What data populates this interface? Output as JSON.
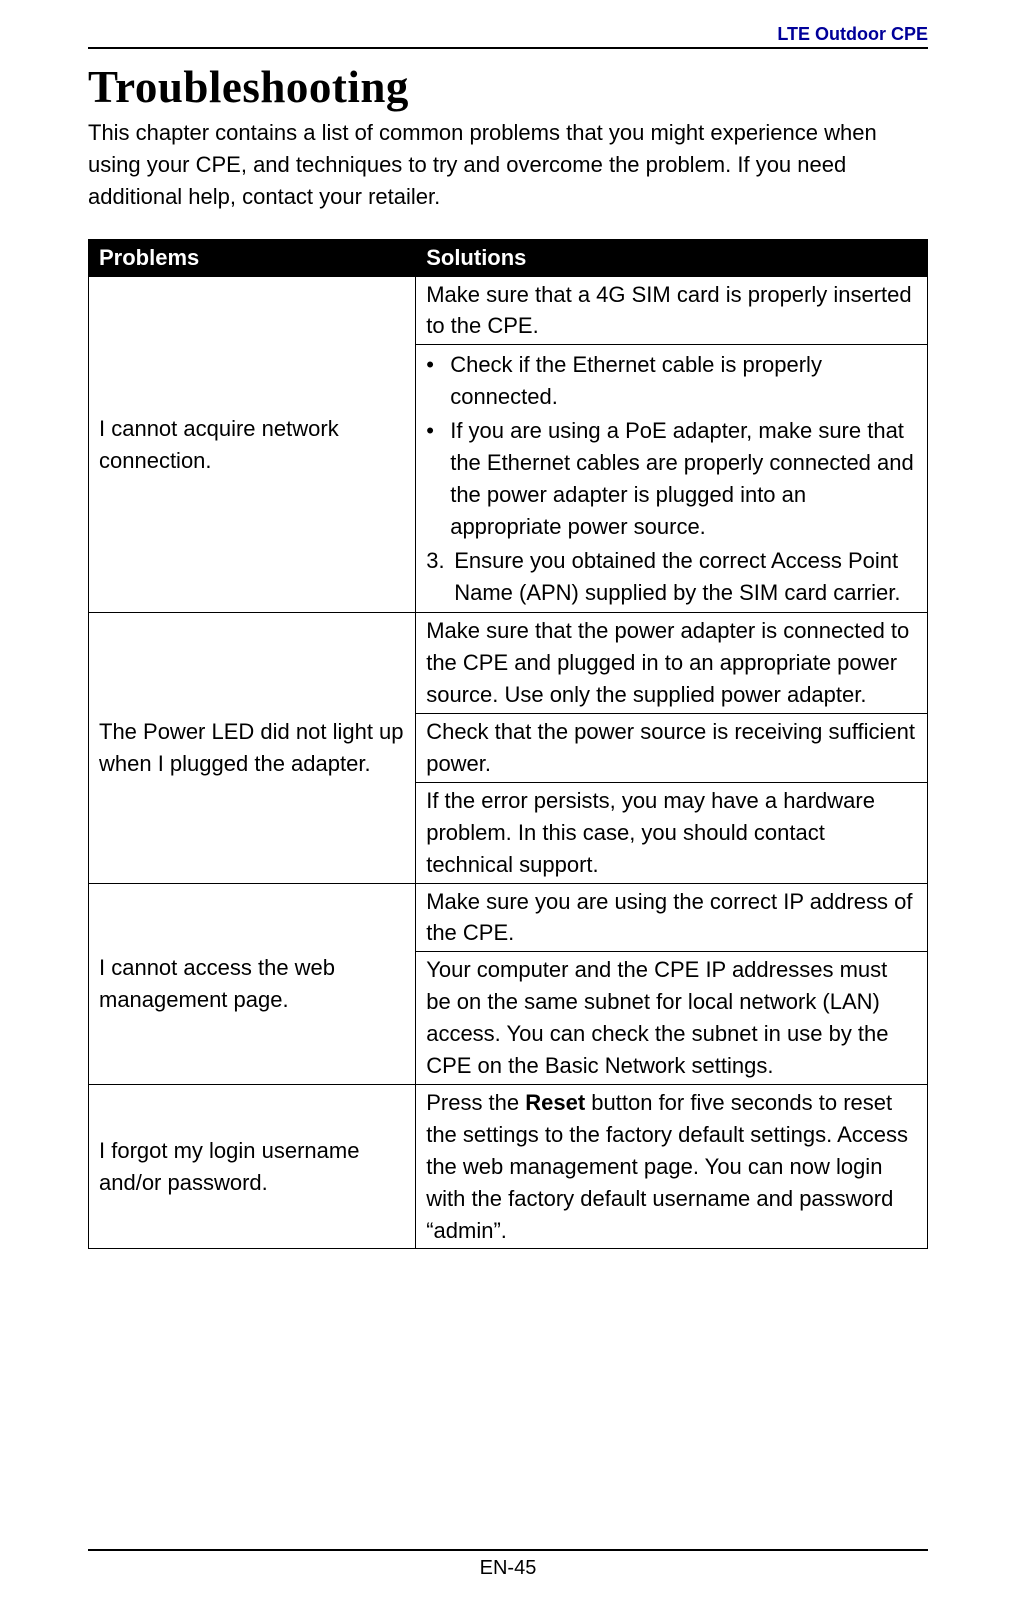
{
  "header": {
    "product_label": "LTE Outdoor CPE"
  },
  "chapter": {
    "title": "Troubleshooting",
    "intro": "This chapter contains a list of common problems that you might experience when using your CPE, and techniques to try and overcome the problem. If you need additional help, contact your retailer."
  },
  "columns": {
    "problems": "Problems",
    "solutions": "Solutions"
  },
  "rows": {
    "r1": {
      "problem": "I cannot acquire network connection.",
      "sol_a": "Make sure that a 4G SIM card is properly inserted to the CPE.",
      "sol_b_bullet1": "Check if the Ethernet cable is properly connected.",
      "sol_b_bullet2": "If you are using a PoE adapter, make sure that the Ethernet cables are properly connected and the power adapter is plugged into an appropriate power source.",
      "sol_b_num3_marker": "3.",
      "sol_b_num3_text": "Ensure you obtained the correct Access Point Name (APN) supplied by the SIM card carrier."
    },
    "r2": {
      "problem": "The Power LED did not light up when I plugged the adapter.",
      "sol_a": "Make sure that the power adapter is connected to the CPE and plugged in to an appropriate power source. Use only the supplied power adapter.",
      "sol_b": "Check that the power source is receiving sufficient power.",
      "sol_c": "If the error persists, you may have a hardware problem. In this case, you should contact technical support."
    },
    "r3": {
      "problem": "I cannot access the web management page.",
      "sol_a": "Make sure you are using the correct IP address of the CPE.",
      "sol_b": "Your computer and the CPE IP addresses must be on the same subnet for local network (LAN) access. You can check the subnet in use by the CPE on the Basic Network settings."
    },
    "r4": {
      "problem": "I forgot my login username and/or password.",
      "sol_pre": "Press the ",
      "sol_bold": "Reset",
      "sol_post": " button for five seconds to reset the settings to the factory default settings. Access the web management page. You can now login with the factory default username and password “admin”."
    }
  },
  "footer": {
    "page_number": "EN-45"
  },
  "glyphs": {
    "bullet": "•"
  }
}
